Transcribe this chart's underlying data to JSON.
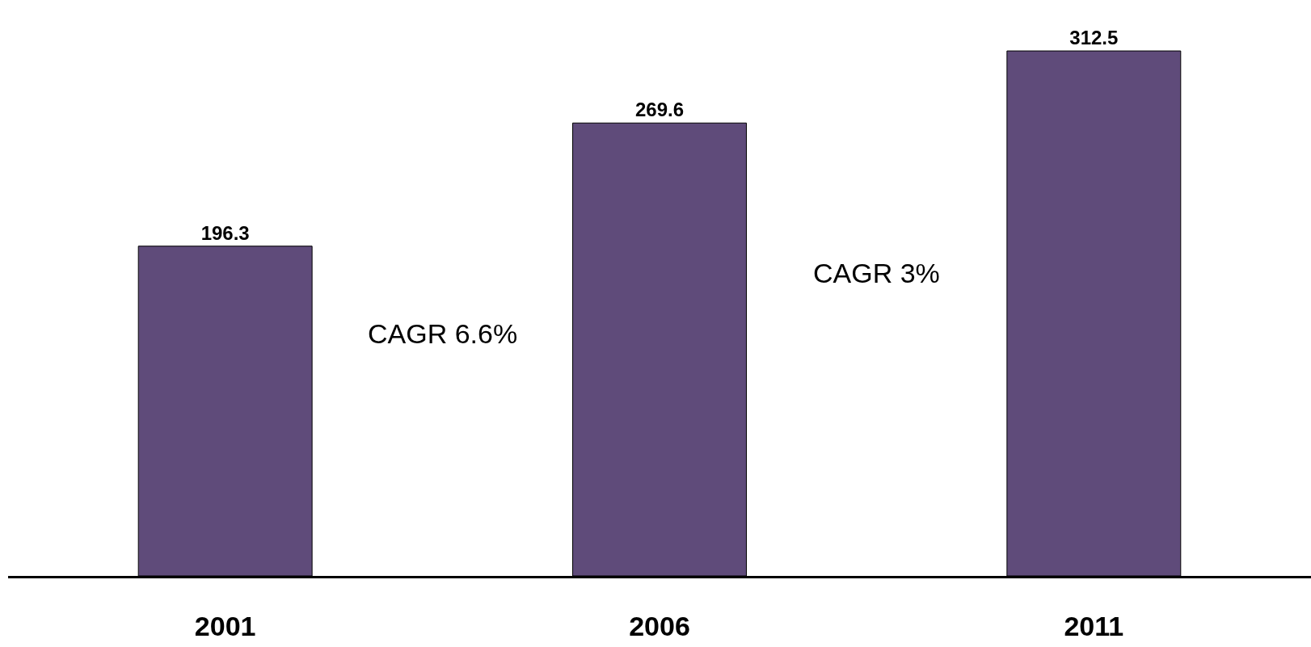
{
  "chart_data": {
    "type": "bar",
    "categories": [
      "2001",
      "2006",
      "2011"
    ],
    "values": [
      196.3,
      269.6,
      312.5
    ],
    "color": "#5f4b7a",
    "data_labels": true,
    "legend": false,
    "tick_labels": "x",
    "annotations": [
      "CAGR 6.6%",
      "CAGR 3%"
    ]
  }
}
